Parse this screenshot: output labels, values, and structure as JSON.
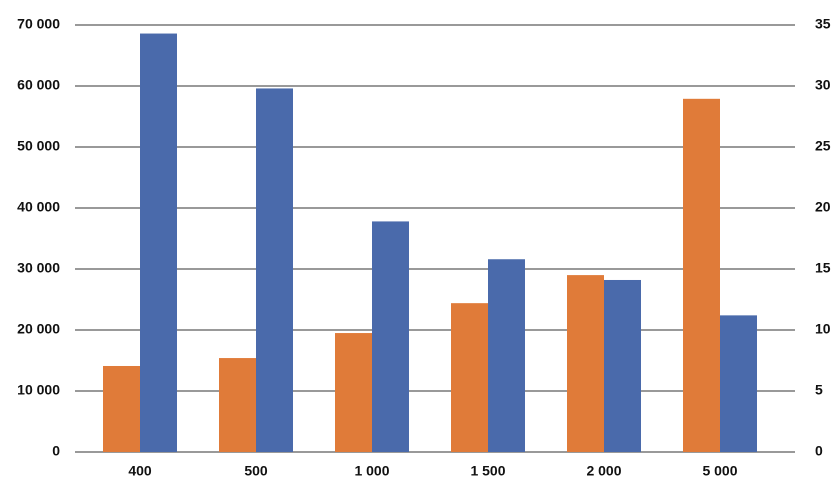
{
  "chart_data": {
    "type": "bar",
    "categories": [
      "400",
      "500",
      "1 000",
      "1 500",
      "2 000",
      "5 000"
    ],
    "series": [
      {
        "color": "#e07b39",
        "values": [
          14100,
          15400,
          19500,
          24400,
          29000,
          57900
        ]
      },
      {
        "color": "#4a6aab",
        "axis": "y2",
        "values": [
          34.3,
          29.8,
          18.9,
          15.8,
          14.1,
          11.2
        ]
      }
    ],
    "ylim": [
      0,
      70000
    ],
    "yticks": [
      0,
      {
        "value": 10000,
        "label": "10 000"
      },
      {
        "value": 20000,
        "label": "20 000"
      },
      {
        "value": 30000,
        "label": "30 000"
      },
      {
        "value": 40000,
        "label": "40 000"
      },
      {
        "value": 50000,
        "label": "50 000"
      },
      {
        "value": 60000,
        "label": "60 000"
      },
      {
        "value": 70000,
        "label": "70 000"
      }
    ],
    "y2lim": [
      0,
      35
    ],
    "y2ticks": [
      0,
      5,
      10,
      15,
      20,
      25,
      30,
      35
    ],
    "grid": true
  }
}
